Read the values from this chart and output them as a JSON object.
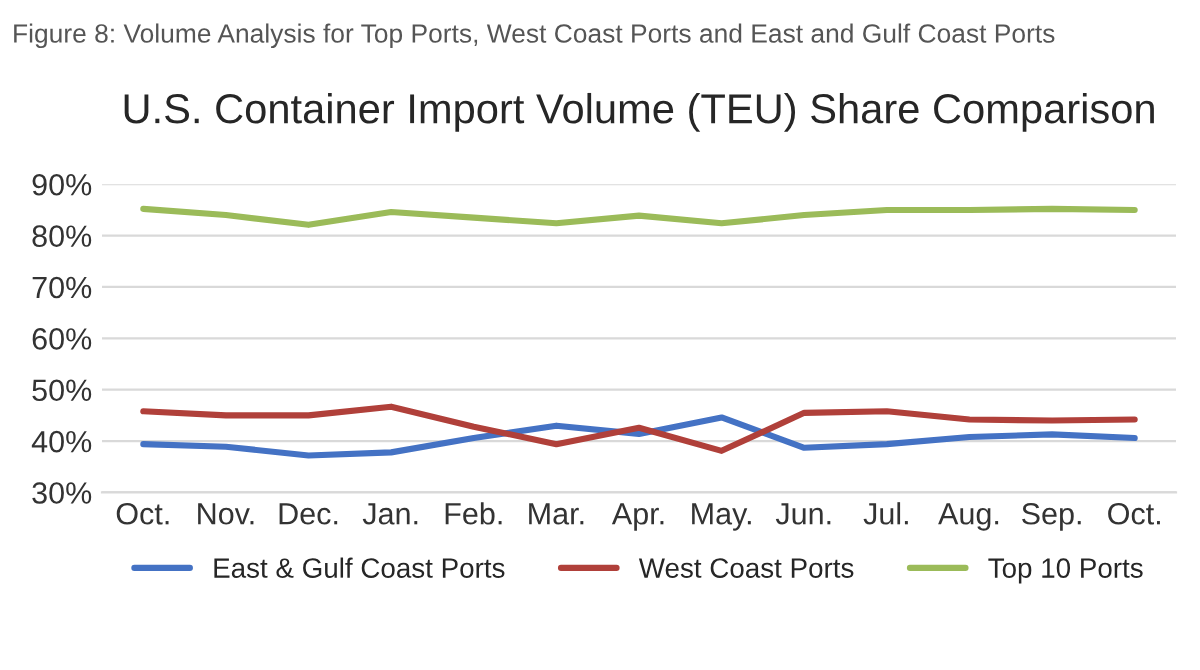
{
  "chart_data": {
    "type": "line",
    "title": "U.S. Container Import Volume (TEU) Share Comparison",
    "subtitle": "Figure 8: Volume Analysis for Top Ports, West Coast Ports and East and Gulf Coast Ports",
    "categories": [
      "Oct.",
      "Nov.",
      "Dec.",
      "Jan.",
      "Feb.",
      "Mar.",
      "Apr.",
      "May.",
      "Jun.",
      "Jul.",
      "Aug.",
      "Sep.",
      "Oct."
    ],
    "series": [
      {
        "name": "East & Gulf Coast Ports",
        "color": "#4472c4",
        "values": [
          39.4,
          38.9,
          37.2,
          37.8,
          40.6,
          43,
          41.4,
          44.6,
          38.7,
          39.4,
          40.8,
          41.3,
          40.6
        ]
      },
      {
        "name": "West Coast Ports",
        "color": "#b0403a",
        "values": [
          45.8,
          45,
          45,
          46.7,
          42.8,
          39.4,
          42.6,
          38.1,
          45.5,
          45.8,
          44.2,
          44,
          44.2
        ]
      },
      {
        "name": "Top 10 Ports",
        "color": "#9bbb59",
        "values": [
          85.2,
          84,
          82.1,
          84.6,
          83.5,
          82.4,
          83.9,
          82.4,
          84,
          85,
          85,
          85.2,
          85
        ]
      }
    ],
    "ylim": [
      30,
      90
    ],
    "yticks": [
      {
        "value": 30,
        "label": "30%"
      },
      {
        "value": 40,
        "label": "40%"
      },
      {
        "value": 50,
        "label": "50%"
      },
      {
        "value": 60,
        "label": "60%"
      },
      {
        "value": 70,
        "label": "70%"
      },
      {
        "value": 80,
        "label": "80%"
      },
      {
        "value": 90,
        "label": "90%"
      }
    ],
    "grid": "y",
    "legend": "bottom",
    "marker": "none",
    "line_style": "solid"
  }
}
